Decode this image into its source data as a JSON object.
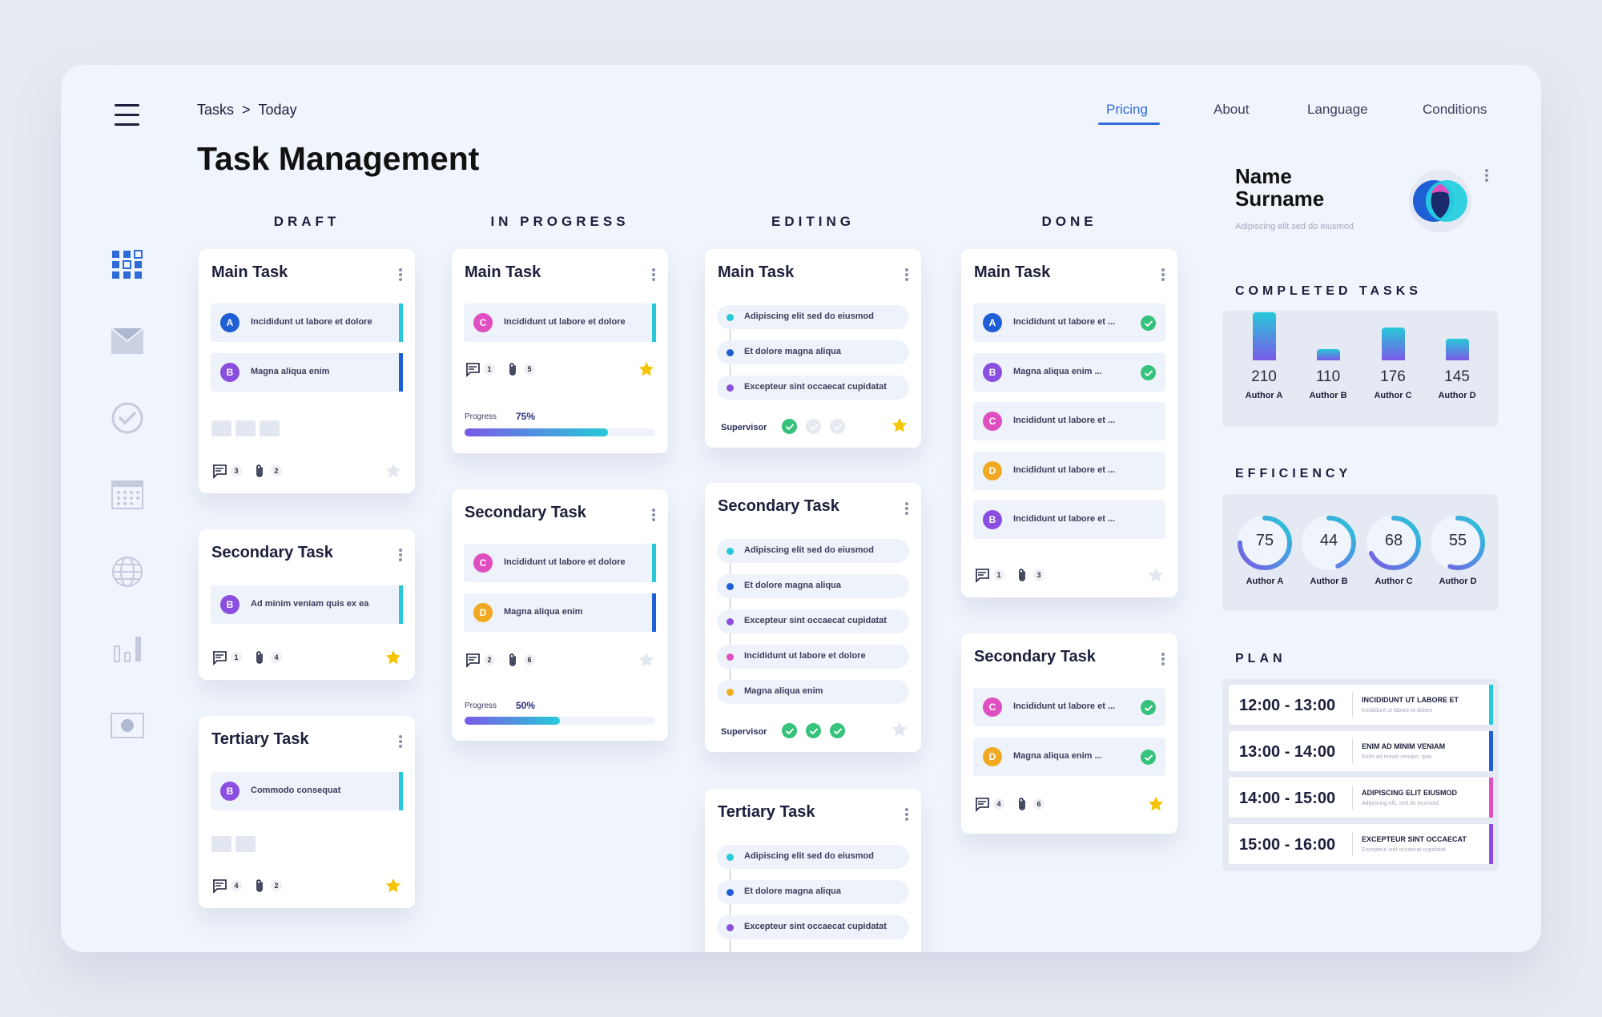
{
  "breadcrumb": {
    "first": "Tasks",
    "sep": ">",
    "second": "Today"
  },
  "nav": {
    "pricing": "Pricing",
    "about": "About",
    "language": "Language",
    "conditions": "Conditions"
  },
  "title": "Task Management",
  "columns": {
    "draft": "DRAFT",
    "in_progress": "IN PROGRESS",
    "editing": "EDITING",
    "done": "DONE"
  },
  "colors": {
    "cyan": "#27c9d9",
    "blue": "#1f5fd6",
    "purple": "#8a4fe0",
    "pink": "#e04fc0",
    "orange": "#f0a920",
    "green": "#35c27a",
    "star": "#f5c400",
    "accent": "#2f6bd8"
  },
  "draft": {
    "main": {
      "title": "Main Task",
      "items": [
        {
          "letter": "A",
          "text": "Incididunt ut labore et dolore"
        },
        {
          "letter": "B",
          "text": "Magna aliqua enim"
        }
      ],
      "comments": "3",
      "attachments": "2"
    },
    "secondary": {
      "title": "Secondary Task",
      "items": [
        {
          "letter": "B",
          "text": "Ad minim veniam  quis ex ea"
        }
      ],
      "comments": "1",
      "attachments": "4"
    },
    "tertiary": {
      "title": "Tertiary Task",
      "items": [
        {
          "letter": "B",
          "text": "Commodo consequat"
        }
      ],
      "comments": "4",
      "attachments": "2"
    }
  },
  "progress": {
    "main": {
      "title": "Main Task",
      "items": [
        {
          "letter": "C",
          "text": "Incididunt ut labore et dolore"
        }
      ],
      "comments": "1",
      "attachments": "5",
      "progress_label": "Progress",
      "progress_value": "75%",
      "progress": 0.75
    },
    "secondary": {
      "title": "Secondary Task",
      "items": [
        {
          "letter": "C",
          "text": "Incididunt ut labore et dolore"
        },
        {
          "letter": "D",
          "text": "Magna aliqua enim"
        }
      ],
      "comments": "2",
      "attachments": "6",
      "progress_label": "Progress",
      "progress_value": "50%",
      "progress": 0.5
    }
  },
  "editing": {
    "main": {
      "title": "Main Task",
      "steps": [
        "Adipiscing elit sed do eiusmod",
        "Et dolore magna aliqua",
        "Excepteur sint occaecat cupidatat"
      ],
      "supervisor": "Supervisor"
    },
    "secondary": {
      "title": "Secondary Task",
      "steps": [
        "Adipiscing elit sed do eiusmod",
        "Et dolore magna aliqua",
        "Excepteur sint occaecat cupidatat",
        "Incididunt ut labore et dolore",
        "Magna aliqua enim"
      ],
      "supervisor": "Supervisor"
    },
    "tertiary": {
      "title": "Tertiary Task",
      "steps": [
        "Adipiscing elit sed do eiusmod",
        "Et dolore magna aliqua",
        "Excepteur sint occaecat cupidatat"
      ]
    }
  },
  "done": {
    "main": {
      "title": "Main Task",
      "items": [
        {
          "letter": "A",
          "text": "Incididunt ut labore et ..."
        },
        {
          "letter": "B",
          "text": "Magna aliqua enim ..."
        },
        {
          "letter": "C",
          "text": "Incididunt ut labore et ..."
        },
        {
          "letter": "D",
          "text": "Incididunt ut labore et ..."
        },
        {
          "letter": "B",
          "text": "Incididunt ut labore et ..."
        }
      ],
      "comments": "1",
      "attachments": "3"
    },
    "secondary": {
      "title": "Secondary Task",
      "items": [
        {
          "letter": "C",
          "text": "Incididunt ut labore et ..."
        },
        {
          "letter": "D",
          "text": "Magna aliqua enim ..."
        }
      ],
      "comments": "4",
      "attachments": "6"
    }
  },
  "profile": {
    "name_line1": "Name",
    "name_line2": "Surname",
    "subtitle": "Adipiscing elit sed do eiusmod"
  },
  "completed": {
    "title": "COMPLETED TASKS",
    "authors": [
      {
        "name": "Author A",
        "value": 210
      },
      {
        "name": "Author B",
        "value": 110
      },
      {
        "name": "Author C",
        "value": 176
      },
      {
        "name": "Author D",
        "value": 145
      }
    ]
  },
  "efficiency": {
    "title": "EFFICIENCY",
    "authors": [
      {
        "name": "Author A",
        "value": 75
      },
      {
        "name": "Author B",
        "value": 44
      },
      {
        "name": "Author C",
        "value": 68
      },
      {
        "name": "Author D",
        "value": 55
      }
    ]
  },
  "plan": {
    "title": "PLAN",
    "rows": [
      {
        "time": "12:00 - 13:00",
        "task": "INCIDIDUNT UT LABORE ET",
        "sub": "Incididunt ut labore et dolore"
      },
      {
        "time": "13:00 - 14:00",
        "task": "ENIM AD MINIM VENIAM",
        "sub": "Enim ad minim veniam, quis"
      },
      {
        "time": "14:00 - 15:00",
        "task": "ADIPISCING ELIT EIUSMOD",
        "sub": "Adipiscing elit, sed do eiusmod"
      },
      {
        "time": "15:00 - 16:00",
        "task": "EXCEPTEUR SINT OCCAECAT",
        "sub": "Excepteur sint occaecat cupidatat"
      }
    ]
  }
}
